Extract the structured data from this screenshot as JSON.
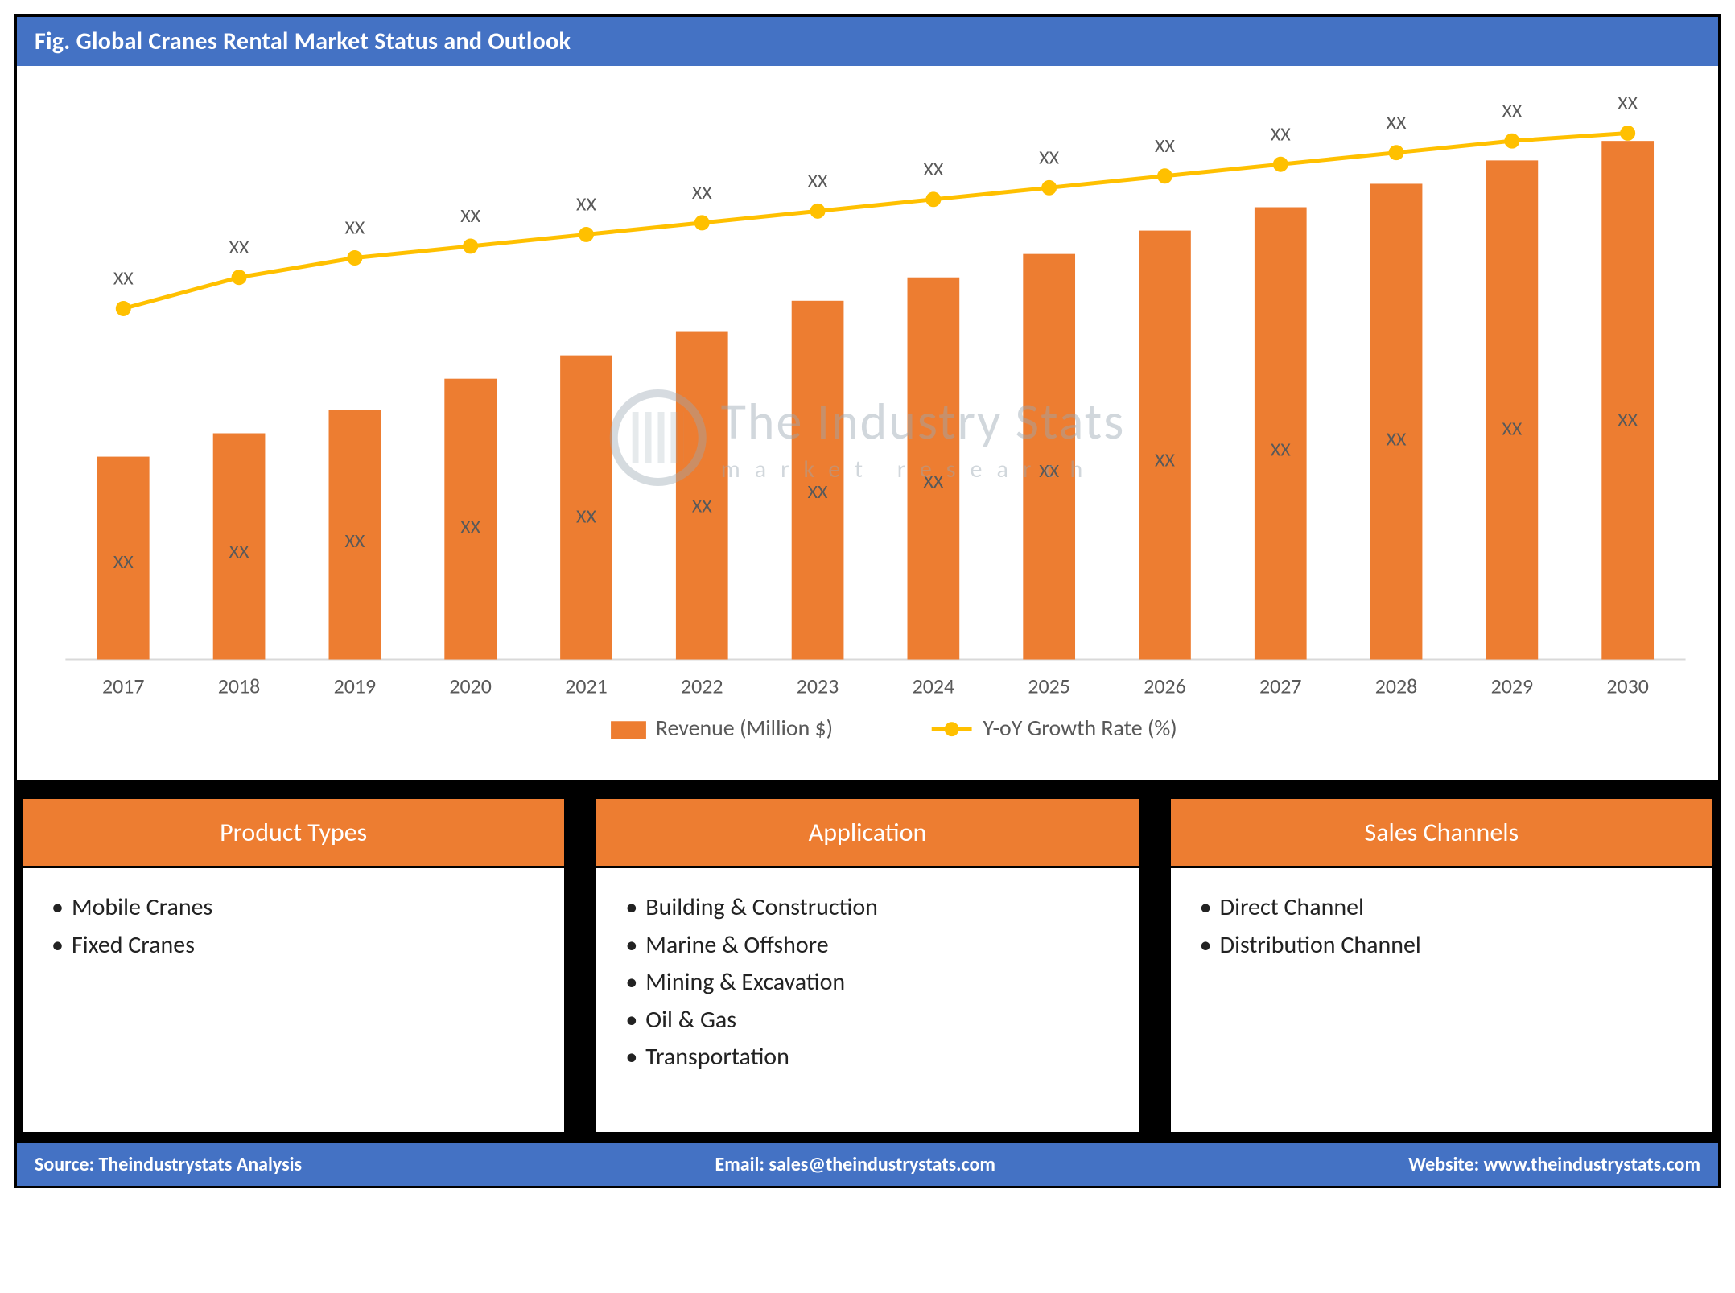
{
  "title": "Fig. Global Cranes Rental Market Status and Outlook",
  "chart": {
    "type": "bar+line",
    "categories": [
      "2017",
      "2018",
      "2019",
      "2020",
      "2021",
      "2022",
      "2023",
      "2024",
      "2025",
      "2026",
      "2027",
      "2028",
      "2029",
      "2030"
    ],
    "bar_series": {
      "name": "Revenue (Million $)",
      "values": [
        260,
        290,
        320,
        360,
        390,
        420,
        460,
        490,
        520,
        550,
        580,
        610,
        640,
        665
      ],
      "value_labels": [
        "XX",
        "XX",
        "XX",
        "XX",
        "XX",
        "XX",
        "XX",
        "XX",
        "XX",
        "XX",
        "XX",
        "XX",
        "XX",
        "XX"
      ],
      "color": "#ed7d31",
      "bar_width_ratio": 0.45
    },
    "line_series": {
      "name": "Y-oY Growth Rate (%)",
      "values": [
        450,
        490,
        515,
        530,
        545,
        560,
        575,
        590,
        605,
        620,
        635,
        650,
        665,
        675
      ],
      "value_labels": [
        "XX",
        "XX",
        "XX",
        "XX",
        "XX",
        "XX",
        "XX",
        "XX",
        "XX",
        "XX",
        "XX",
        "XX",
        "XX",
        "XX"
      ],
      "line_color": "#ffc000",
      "marker_color": "#ffc000",
      "marker_size": 9,
      "line_width": 5
    },
    "y_max": 720,
    "plot_background": "#ffffff",
    "baseline_color": "#d9d9d9",
    "axis_label_color": "#595959",
    "label_fontsize": 26,
    "data_label_fontsize": 24,
    "legend_fontsize": 28
  },
  "legend": {
    "bar": "Revenue (Million $)",
    "line": "Y-oY Growth Rate (%)"
  },
  "watermark": {
    "main": "The Industry Stats",
    "sub": "market research"
  },
  "boxes": [
    {
      "title": "Product Types",
      "items": [
        "Mobile Cranes",
        "Fixed Cranes"
      ]
    },
    {
      "title": "Application",
      "items": [
        "Building & Construction",
        "Marine & Offshore",
        "Mining & Excavation",
        "Oil & Gas",
        "Transportation"
      ]
    },
    {
      "title": "Sales Channels",
      "items": [
        "Direct Channel",
        "Distribution Channel"
      ]
    }
  ],
  "footer": {
    "source_label": "Source: ",
    "source_value": "Theindustrystats Analysis",
    "email_label": "Email: ",
    "email_value": "sales@theindustrystats.com",
    "website_label": "Website: ",
    "website_value": "www.theindustrystats.com"
  }
}
